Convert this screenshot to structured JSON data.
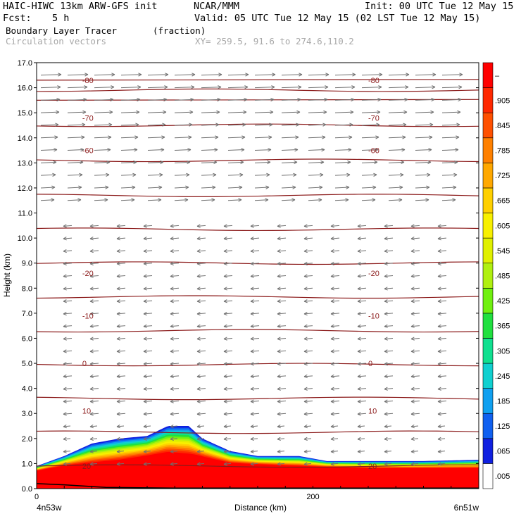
{
  "header": {
    "model_line": "HAIC-HIWC 13km ARW-GFS init",
    "org": "NCAR/MMM",
    "init_line": "Init: 00 UTC Tue 12 May 15",
    "fcst_label": "Fcst:",
    "fcst_value": "5 h",
    "valid_line": "Valid: 05 UTC Tue 12 May 15 (02 LST Tue 12 May 15)",
    "field_name": "Boundary Layer Tracer",
    "field_units": "(fraction)",
    "overlay_name": "Circulation vectors",
    "xy_line": "XY= 259.5, 91.6 to 274.6,110.2"
  },
  "chart_data": {
    "type": "heatmap",
    "xlabel": "Distance (km)",
    "ylabel": "Height (km)",
    "xlim": [
      0,
      320
    ],
    "ylim": [
      0,
      17
    ],
    "x_tick_labels": [
      {
        "x": 0,
        "label": "0"
      },
      {
        "x": 200,
        "label": "200"
      }
    ],
    "x_endpoint_labels": {
      "left": "4n53w",
      "right": "6n51w"
    },
    "y_ticks": [
      0.0,
      1.0,
      2.0,
      3.0,
      4.0,
      5.0,
      6.0,
      7.0,
      8.0,
      9.0,
      10.0,
      11.0,
      12.0,
      13.0,
      14.0,
      15.0,
      16.0,
      17.0
    ],
    "y_tick_labels": [
      "0.0",
      "1.0",
      "2.0",
      "3.0",
      "4.0",
      "5.0",
      "6.0",
      "7.0",
      "8.0",
      "9.0",
      "10.0",
      "11.0",
      "12.0",
      "13.0",
      "14.0",
      "15.0",
      "16.0",
      "17.0"
    ],
    "colorbar": {
      "labels": [
        ".005",
        ".065",
        ".125",
        ".185",
        ".245",
        ".305",
        ".365",
        ".425",
        ".485",
        ".545",
        ".605",
        ".665",
        ".725",
        ".785",
        ".845",
        ".905",
        "–"
      ],
      "colors": [
        "#ffffff",
        "#1020e0",
        "#1060f0",
        "#10a0f0",
        "#10d0d0",
        "#10e090",
        "#20e040",
        "#70f010",
        "#b0f010",
        "#e0f000",
        "#f8f000",
        "#ffd000",
        "#ffa800",
        "#ff8000",
        "#ff5000",
        "#ff2800",
        "#ff0000"
      ]
    },
    "contour_lines": {
      "color": "#8b1a1a",
      "labels": [
        {
          "text": "-80",
          "y": 16.3
        },
        {
          "text": "-70",
          "y": 14.8
        },
        {
          "text": "-60",
          "y": 13.5
        },
        {
          "text": "-20",
          "y": 8.6
        },
        {
          "text": "-10",
          "y": 6.9
        },
        {
          "text": "0",
          "y": 5.0
        },
        {
          "text": "10",
          "y": 3.1
        },
        {
          "text": "20",
          "y": 0.9
        }
      ]
    },
    "tracer_region": {
      "top_profile": [
        [
          0,
          0.9
        ],
        [
          20,
          1.3
        ],
        [
          40,
          1.8
        ],
        [
          60,
          2.0
        ],
        [
          80,
          2.1
        ],
        [
          95,
          2.5
        ],
        [
          110,
          2.5
        ],
        [
          120,
          2.0
        ],
        [
          140,
          1.5
        ],
        [
          160,
          1.3
        ],
        [
          190,
          1.3
        ],
        [
          210,
          1.1
        ],
        [
          240,
          1.1
        ],
        [
          280,
          1.1
        ],
        [
          320,
          1.15
        ]
      ],
      "core_profile": [
        [
          0,
          0.7
        ],
        [
          20,
          0.9
        ],
        [
          60,
          1.1
        ],
        [
          95,
          1.4
        ],
        [
          115,
          1.3
        ],
        [
          140,
          1.0
        ],
        [
          180,
          0.9
        ],
        [
          240,
          0.8
        ],
        [
          320,
          0.8
        ]
      ]
    },
    "vectors": {
      "color": "#707070",
      "upper_levels_km": [
        11.5,
        12.0,
        12.5,
        13.0,
        13.5,
        14.0,
        14.5,
        15.0,
        15.5,
        16.0,
        16.5
      ],
      "lower_levels_km": [
        1.0,
        1.5,
        2.0,
        2.5,
        3.0,
        3.5,
        4.0,
        4.5,
        5.0,
        5.5,
        6.0,
        6.5,
        7.0,
        7.5,
        8.0,
        8.5,
        9.0,
        9.5,
        10.0,
        10.5
      ]
    }
  }
}
